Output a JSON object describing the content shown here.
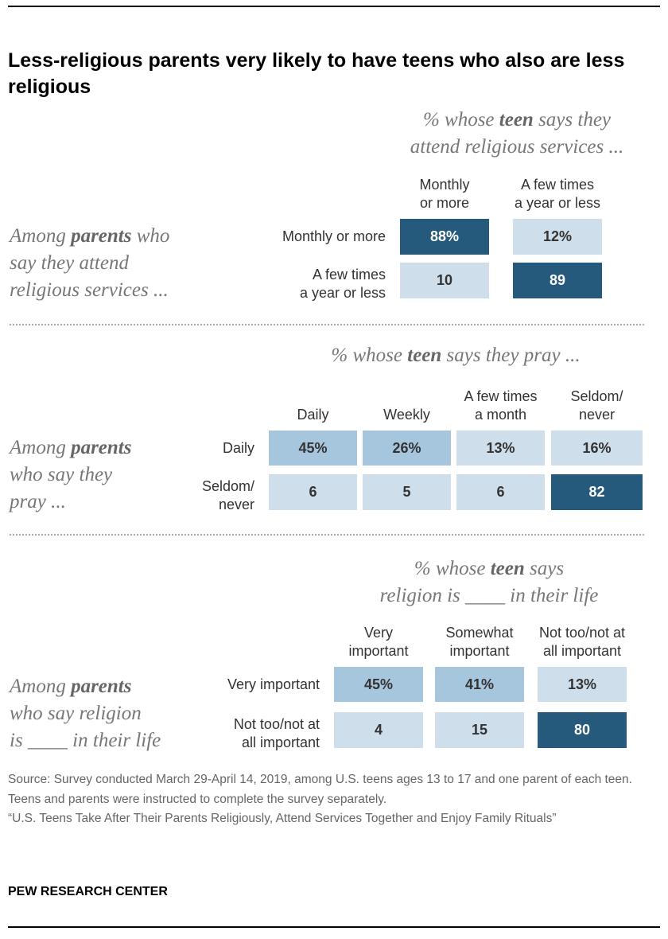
{
  "title": "Less-religious parents very likely to have teens who also are less religious",
  "colors": {
    "dark": "#255a7c",
    "mid": "#a6c6dd",
    "light": "#cfdeeb",
    "dark_text": "#ffffff",
    "light_text": "#333333"
  },
  "chart_data": [
    {
      "type": "heatmap",
      "header": [
        [
          {
            "t": "% whose "
          },
          {
            "t": "teen",
            "b": true
          },
          {
            "t": " says they"
          }
        ],
        [
          {
            "t": "attend religious services ..."
          }
        ]
      ],
      "left_label": [
        [
          {
            "t": "Among "
          },
          {
            "t": "parents",
            "b": true
          },
          {
            "t": " who"
          }
        ],
        [
          {
            "t": "say they attend"
          }
        ],
        [
          {
            "t": "religious services ..."
          }
        ]
      ],
      "columns": [
        [
          "Monthly",
          "or more"
        ],
        [
          "A few times",
          "a year or less"
        ]
      ],
      "rows": [
        [
          "Monthly or more"
        ],
        [
          "A few times",
          "a year or less"
        ]
      ],
      "values": [
        [
          88,
          12
        ],
        [
          10,
          89
        ]
      ],
      "shades": [
        [
          "dark",
          "light"
        ],
        [
          "light",
          "dark"
        ]
      ]
    },
    {
      "type": "heatmap",
      "header": [
        [
          {
            "t": "% whose "
          },
          {
            "t": "teen",
            "b": true
          },
          {
            "t": " says they pray ..."
          }
        ]
      ],
      "left_label": [
        [
          {
            "t": "Among "
          },
          {
            "t": "parents",
            "b": true
          }
        ],
        [
          {
            "t": "who say they"
          }
        ],
        [
          {
            "t": "pray ..."
          }
        ]
      ],
      "columns": [
        [
          "Daily"
        ],
        [
          "Weekly"
        ],
        [
          "A few times",
          "a month"
        ],
        [
          "Seldom/",
          "never"
        ]
      ],
      "rows": [
        [
          "Daily"
        ],
        [
          "Seldom/",
          "never"
        ]
      ],
      "values": [
        [
          45,
          26,
          13,
          16
        ],
        [
          6,
          5,
          6,
          82
        ]
      ],
      "shades": [
        [
          "mid",
          "mid",
          "light",
          "light"
        ],
        [
          "light",
          "light",
          "light",
          "dark"
        ]
      ]
    },
    {
      "type": "heatmap",
      "header": [
        [
          {
            "t": "% whose "
          },
          {
            "t": "teen",
            "b": true
          },
          {
            "t": " says"
          }
        ],
        [
          {
            "t": "religion is ____ in their life"
          }
        ]
      ],
      "left_label": [
        [
          {
            "t": "Among "
          },
          {
            "t": "parents",
            "b": true
          }
        ],
        [
          {
            "t": "who say religion"
          }
        ],
        [
          {
            "t": "is ____ in their life"
          }
        ]
      ],
      "columns": [
        [
          "Very",
          "important"
        ],
        [
          "Somewhat",
          "important"
        ],
        [
          "Not too/not at",
          "all important"
        ]
      ],
      "rows": [
        [
          "Very important"
        ],
        [
          "Not too/not at",
          "all important"
        ]
      ],
      "values": [
        [
          45,
          41,
          13
        ],
        [
          4,
          15,
          80
        ]
      ],
      "shades": [
        [
          "mid",
          "mid",
          "light"
        ],
        [
          "light",
          "light",
          "dark"
        ]
      ]
    }
  ],
  "footer": {
    "source": "Source: Survey conducted March 29-April 14, 2019, among U.S. teens ages 13 to 17 and one parent of each teen. Teens and parents were instructed to complete the survey separately.",
    "report": "“U.S. Teens Take After Their Parents Religiously, Attend Services Together and Enjoy Family Rituals”",
    "brand": "PEW RESEARCH CENTER"
  }
}
